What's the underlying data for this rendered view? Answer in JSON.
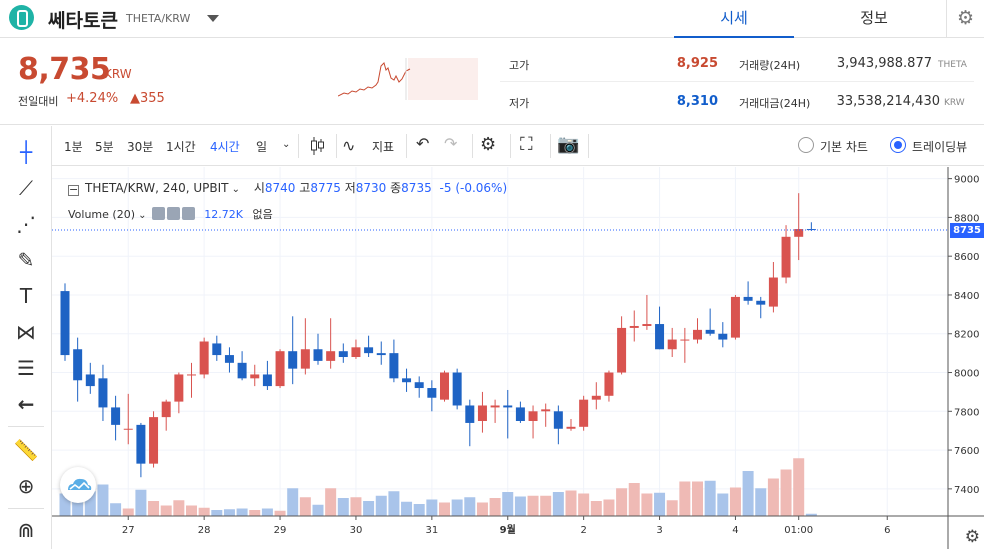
{
  "header": {
    "coin_name": "쎄타토큰",
    "pair": "THETA/KRW",
    "tabs": [
      {
        "label": "시세"
      },
      {
        "label": "정보"
      }
    ]
  },
  "summary": {
    "price": "8,735",
    "unit": "KRW",
    "change_label": "전일대비",
    "change_rate": "+4.24%",
    "change_amount": "▲355",
    "high_label": "고가",
    "high": "8,925",
    "low_label": "저가",
    "low": "8,310",
    "volume_label": "거래량(24H)",
    "volume": "3,943,988.877",
    "volume_unit": "THETA",
    "value_label": "거래대금(24H)",
    "value": "33,538,214,430",
    "value_unit": "KRW",
    "colors": {
      "up": "#c84a31",
      "down": "#115dcb"
    }
  },
  "toolbar": {
    "intervals": [
      "1분",
      "5분",
      "30분",
      "1시간",
      "4시간",
      "일"
    ],
    "active_interval": "4시간",
    "indicator_label": "지표",
    "basic_chart_label": "기본 차트",
    "trading_view_label": "트레이딩뷰"
  },
  "legend": {
    "symbol": "THETA/KRW, 240, UPBIT",
    "open_label": "시",
    "open": "8740",
    "high_label": "고",
    "high": "8775",
    "low_label": "저",
    "low": "8730",
    "close_label": "종",
    "close": "8735",
    "change": "-5 (-0.06%)",
    "volume_name": "Volume (20)",
    "volume_value": "12.72K",
    "volume_extra": "없음"
  },
  "chart_data": {
    "type": "candlestick",
    "y_ticks": [
      9000,
      8800,
      8600,
      8400,
      8200,
      8000,
      7800,
      7600,
      7400
    ],
    "ylim": [
      7260,
      9060
    ],
    "x_ticks": [
      {
        "label": "27",
        "index": 5
      },
      {
        "label": "28",
        "index": 11
      },
      {
        "label": "29",
        "index": 17
      },
      {
        "label": "30",
        "index": 23
      },
      {
        "label": "31",
        "index": 29
      },
      {
        "label": "9월",
        "index": 35
      },
      {
        "label": "2",
        "index": 41
      },
      {
        "label": "3",
        "index": 47
      },
      {
        "label": "4",
        "index": 53
      },
      {
        "label": "01:00",
        "index": 58
      },
      {
        "label": "6",
        "index": 65
      }
    ],
    "last_price": 8735,
    "last_price_label": "8735",
    "colors": {
      "up": "#d9534f",
      "down": "#1e63c4",
      "vol_up": "#efbab5",
      "vol_down": "#a9c4ea"
    },
    "candles": [
      {
        "o": 8420,
        "h": 8460,
        "l": 8060,
        "c": 8090,
        "v": 0.3
      },
      {
        "o": 8120,
        "h": 8180,
        "l": 7850,
        "c": 7960,
        "v": 0.26
      },
      {
        "o": 7990,
        "h": 8050,
        "l": 7890,
        "c": 7930,
        "v": 0.33
      },
      {
        "o": 7970,
        "h": 8040,
        "l": 7750,
        "c": 7820,
        "v": 0.42
      },
      {
        "o": 7820,
        "h": 7880,
        "l": 7650,
        "c": 7730,
        "v": 0.17
      },
      {
        "o": 7710,
        "h": 7890,
        "l": 7630,
        "c": 7710,
        "v": 0.1
      },
      {
        "o": 7730,
        "h": 7740,
        "l": 7460,
        "c": 7530,
        "v": 0.35
      },
      {
        "o": 7530,
        "h": 7800,
        "l": 7510,
        "c": 7770,
        "v": 0.2
      },
      {
        "o": 7770,
        "h": 7860,
        "l": 7700,
        "c": 7850,
        "v": 0.14
      },
      {
        "o": 7850,
        "h": 8000,
        "l": 7790,
        "c": 7990,
        "v": 0.21
      },
      {
        "o": 7990,
        "h": 8050,
        "l": 7870,
        "c": 7990,
        "v": 0.14
      },
      {
        "o": 7990,
        "h": 8180,
        "l": 7970,
        "c": 8160,
        "v": 0.11
      },
      {
        "o": 8150,
        "h": 8190,
        "l": 8060,
        "c": 8090,
        "v": 0.08
      },
      {
        "o": 8090,
        "h": 8130,
        "l": 8000,
        "c": 8050,
        "v": 0.09
      },
      {
        "o": 8050,
        "h": 8110,
        "l": 7960,
        "c": 7970,
        "v": 0.1
      },
      {
        "o": 7970,
        "h": 8040,
        "l": 7930,
        "c": 7990,
        "v": 0.08
      },
      {
        "o": 7990,
        "h": 8060,
        "l": 7910,
        "c": 7930,
        "v": 0.1
      },
      {
        "o": 7930,
        "h": 8120,
        "l": 7920,
        "c": 8110,
        "v": 0.07
      },
      {
        "o": 8110,
        "h": 8290,
        "l": 7940,
        "c": 8020,
        "v": 0.37
      },
      {
        "o": 8020,
        "h": 8280,
        "l": 7990,
        "c": 8120,
        "v": 0.25
      },
      {
        "o": 8120,
        "h": 8200,
        "l": 8040,
        "c": 8060,
        "v": 0.15
      },
      {
        "o": 8060,
        "h": 8280,
        "l": 8020,
        "c": 8110,
        "v": 0.37
      },
      {
        "o": 8110,
        "h": 8150,
        "l": 8050,
        "c": 8080,
        "v": 0.24
      },
      {
        "o": 8080,
        "h": 8170,
        "l": 8070,
        "c": 8130,
        "v": 0.25
      },
      {
        "o": 8130,
        "h": 8190,
        "l": 8080,
        "c": 8100,
        "v": 0.2
      },
      {
        "o": 8100,
        "h": 8160,
        "l": 8040,
        "c": 8090,
        "v": 0.27
      },
      {
        "o": 8100,
        "h": 8170,
        "l": 7950,
        "c": 7970,
        "v": 0.33
      },
      {
        "o": 7970,
        "h": 8020,
        "l": 7900,
        "c": 7950,
        "v": 0.19
      },
      {
        "o": 7950,
        "h": 7980,
        "l": 7870,
        "c": 7920,
        "v": 0.16
      },
      {
        "o": 7920,
        "h": 7960,
        "l": 7800,
        "c": 7870,
        "v": 0.22
      },
      {
        "o": 7860,
        "h": 8010,
        "l": 7850,
        "c": 8000,
        "v": 0.18
      },
      {
        "o": 8000,
        "h": 8020,
        "l": 7810,
        "c": 7830,
        "v": 0.22
      },
      {
        "o": 7830,
        "h": 7860,
        "l": 7620,
        "c": 7740,
        "v": 0.25
      },
      {
        "o": 7750,
        "h": 7900,
        "l": 7690,
        "c": 7830,
        "v": 0.18
      },
      {
        "o": 7820,
        "h": 7860,
        "l": 7740,
        "c": 7830,
        "v": 0.24
      },
      {
        "o": 7830,
        "h": 7910,
        "l": 7660,
        "c": 7820,
        "v": 0.32
      },
      {
        "o": 7820,
        "h": 7850,
        "l": 7740,
        "c": 7750,
        "v": 0.26
      },
      {
        "o": 7750,
        "h": 7830,
        "l": 7660,
        "c": 7800,
        "v": 0.27
      },
      {
        "o": 7800,
        "h": 7840,
        "l": 7720,
        "c": 7810,
        "v": 0.27
      },
      {
        "o": 7800,
        "h": 7830,
        "l": 7630,
        "c": 7710,
        "v": 0.32
      },
      {
        "o": 7710,
        "h": 7760,
        "l": 7700,
        "c": 7720,
        "v": 0.34
      },
      {
        "o": 7720,
        "h": 7880,
        "l": 7700,
        "c": 7860,
        "v": 0.3
      },
      {
        "o": 7860,
        "h": 7950,
        "l": 7810,
        "c": 7880,
        "v": 0.2
      },
      {
        "o": 7880,
        "h": 8010,
        "l": 7850,
        "c": 8000,
        "v": 0.22
      },
      {
        "o": 8000,
        "h": 8290,
        "l": 7990,
        "c": 8230,
        "v": 0.37
      },
      {
        "o": 8230,
        "h": 8320,
        "l": 8160,
        "c": 8240,
        "v": 0.44
      },
      {
        "o": 8240,
        "h": 8400,
        "l": 8220,
        "c": 8250,
        "v": 0.3
      },
      {
        "o": 8250,
        "h": 8340,
        "l": 8120,
        "c": 8120,
        "v": 0.31
      },
      {
        "o": 8120,
        "h": 8230,
        "l": 8080,
        "c": 8170,
        "v": 0.21
      },
      {
        "o": 8170,
        "h": 8230,
        "l": 8050,
        "c": 8170,
        "v": 0.46
      },
      {
        "o": 8170,
        "h": 8280,
        "l": 8150,
        "c": 8220,
        "v": 0.46
      },
      {
        "o": 8220,
        "h": 8330,
        "l": 8190,
        "c": 8200,
        "v": 0.47
      },
      {
        "o": 8200,
        "h": 8260,
        "l": 8130,
        "c": 8170,
        "v": 0.3
      },
      {
        "o": 8180,
        "h": 8400,
        "l": 8170,
        "c": 8390,
        "v": 0.38
      },
      {
        "o": 8390,
        "h": 8470,
        "l": 8350,
        "c": 8370,
        "v": 0.6
      },
      {
        "o": 8370,
        "h": 8390,
        "l": 8280,
        "c": 8350,
        "v": 0.37
      },
      {
        "o": 8340,
        "h": 8570,
        "l": 8310,
        "c": 8490,
        "v": 0.5
      },
      {
        "o": 8490,
        "h": 8760,
        "l": 8460,
        "c": 8700,
        "v": 0.62
      },
      {
        "o": 8700,
        "h": 8925,
        "l": 8580,
        "c": 8740,
        "v": 0.77
      },
      {
        "o": 8740,
        "h": 8775,
        "l": 8730,
        "c": 8735,
        "v": 0.03
      }
    ]
  }
}
